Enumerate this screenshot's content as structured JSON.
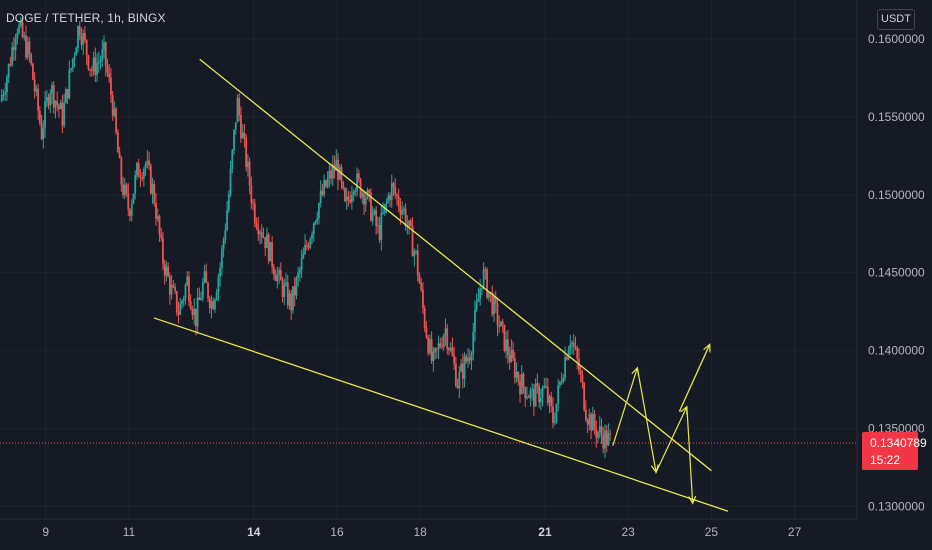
{
  "header": {
    "symbol": "DOGE / TETHER, 1h, BINGX"
  },
  "price_scale": {
    "unit": "USDT"
  },
  "last_price": {
    "price": "0.1340789",
    "countdown": "15:22",
    "color": "#f23645"
  },
  "colors": {
    "background": "#161a25",
    "up": "#26a69a",
    "down": "#ef5350",
    "drawing": "#e6e84a",
    "text": "#b2b5be"
  },
  "chart_data": {
    "type": "candlestick",
    "symbol": "DOGE / TETHER",
    "interval": "1h",
    "exchange": "BINGX",
    "y_ticks": [
      "0.1600000",
      "0.1550000",
      "0.1500000",
      "0.1450000",
      "0.1400000",
      "0.1350000",
      "0.1300000"
    ],
    "y_tick_values": [
      0.16,
      0.155,
      0.15,
      0.145,
      0.14,
      0.135,
      0.13
    ],
    "x_ticks": [
      {
        "label": "9",
        "day": 9,
        "bold": false
      },
      {
        "label": "11",
        "day": 11,
        "bold": false
      },
      {
        "label": "14",
        "day": 14,
        "bold": true
      },
      {
        "label": "16",
        "day": 16,
        "bold": false
      },
      {
        "label": "18",
        "day": 18,
        "bold": false
      },
      {
        "label": "21",
        "day": 21,
        "bold": true
      },
      {
        "label": "23",
        "day": 23,
        "bold": false
      },
      {
        "label": "25",
        "day": 25,
        "bold": false
      },
      {
        "label": "27",
        "day": 27,
        "bold": false
      }
    ],
    "x_range_days": [
      7.9,
      28.5
    ],
    "y_range": [
      0.1292,
      0.1625
    ],
    "last_price": 0.1340789,
    "close_path": [
      [
        7.9,
        0.156
      ],
      [
        8.1,
        0.158
      ],
      [
        8.3,
        0.161
      ],
      [
        8.6,
        0.159
      ],
      [
        8.9,
        0.154
      ],
      [
        9.1,
        0.157
      ],
      [
        9.4,
        0.155
      ],
      [
        9.6,
        0.158
      ],
      [
        9.8,
        0.161
      ],
      [
        10.1,
        0.158
      ],
      [
        10.4,
        0.159
      ],
      [
        10.6,
        0.156
      ],
      [
        10.8,
        0.151
      ],
      [
        11.0,
        0.149
      ],
      [
        11.2,
        0.1515
      ],
      [
        11.4,
        0.152
      ],
      [
        11.6,
        0.15
      ],
      [
        11.8,
        0.146
      ],
      [
        12.0,
        0.144
      ],
      [
        12.2,
        0.1425
      ],
      [
        12.4,
        0.1445
      ],
      [
        12.6,
        0.142
      ],
      [
        12.8,
        0.1445
      ],
      [
        13.0,
        0.143
      ],
      [
        13.2,
        0.1455
      ],
      [
        13.4,
        0.15
      ],
      [
        13.6,
        0.156
      ],
      [
        13.8,
        0.1525
      ],
      [
        14.0,
        0.149
      ],
      [
        14.3,
        0.147
      ],
      [
        14.6,
        0.1445
      ],
      [
        14.9,
        0.143
      ],
      [
        15.2,
        0.146
      ],
      [
        15.5,
        0.149
      ],
      [
        15.8,
        0.151
      ],
      [
        16.0,
        0.152
      ],
      [
        16.2,
        0.149
      ],
      [
        16.4,
        0.151
      ],
      [
        16.7,
        0.15
      ],
      [
        17.0,
        0.1475
      ],
      [
        17.3,
        0.1505
      ],
      [
        17.6,
        0.149
      ],
      [
        17.9,
        0.146
      ],
      [
        18.1,
        0.142
      ],
      [
        18.3,
        0.139
      ],
      [
        18.6,
        0.1415
      ],
      [
        18.9,
        0.138
      ],
      [
        19.2,
        0.14
      ],
      [
        19.5,
        0.145
      ],
      [
        19.8,
        0.1425
      ],
      [
        20.1,
        0.14
      ],
      [
        20.4,
        0.138
      ],
      [
        20.7,
        0.137
      ],
      [
        21.0,
        0.1375
      ],
      [
        21.2,
        0.1355
      ],
      [
        21.4,
        0.1385
      ],
      [
        21.6,
        0.141
      ],
      [
        21.8,
        0.139
      ],
      [
        22.0,
        0.136
      ],
      [
        22.2,
        0.135
      ],
      [
        22.4,
        0.1345
      ],
      [
        22.6,
        0.1341
      ]
    ],
    "drawings": {
      "upper_trendline": [
        [
          12.7,
          0.1587
        ],
        [
          25.0,
          0.1323
        ]
      ],
      "lower_trendline": [
        [
          11.6,
          0.1421
        ],
        [
          25.4,
          0.1297
        ]
      ],
      "projected_path": [
        [
          22.63,
          0.1339
        ],
        [
          23.22,
          0.1389
        ],
        [
          23.67,
          0.1322
        ],
        [
          24.41,
          0.1364
        ],
        [
          24.55,
          0.1302
        ]
      ],
      "breakout_arrow": [
        [
          24.23,
          0.1361
        ],
        [
          24.96,
          0.1404
        ]
      ],
      "arrowheads": [
        [
          23.22,
          0.1389
        ],
        [
          23.67,
          0.1322
        ],
        [
          24.41,
          0.1364
        ],
        [
          24.55,
          0.1302
        ],
        [
          24.96,
          0.1404
        ]
      ]
    }
  }
}
